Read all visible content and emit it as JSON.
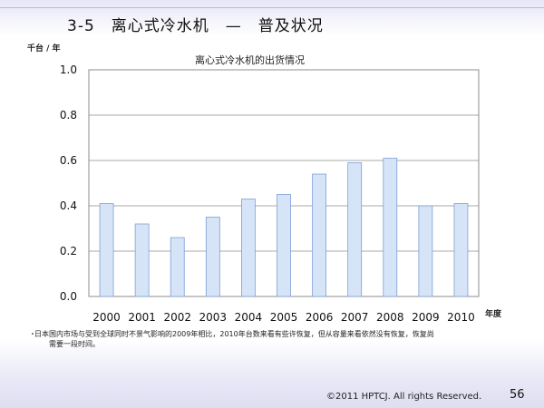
{
  "slide": {
    "title": "3-5　离心式冷水机　—　普及状况",
    "footnote_bullet": "・",
    "footnote_line1": "日本国内市场与受到全球同时不景气影响的2009年相比，2010年台数来看有些许恢复，但从容量来看依然没有恢复，恢复尚",
    "footnote_line2": "需要一段时间。",
    "copyright": "©2011 HPTCJ. All rights Reserved.",
    "page_number": "56"
  },
  "colors": {
    "bar_fill": "#d6e4f7",
    "bar_stroke": "#7f9fd6",
    "grid": "#8c8c8c",
    "accent": "#b9b9e0"
  },
  "chart_data": {
    "type": "bar",
    "title": "离心式冷水机的出货情况",
    "ylabel": "千台 / 年",
    "xlabel": "年度",
    "categories": [
      "2000",
      "2001",
      "2002",
      "2003",
      "2004",
      "2005",
      "2006",
      "2007",
      "2008",
      "2009",
      "2010"
    ],
    "values": [
      0.41,
      0.32,
      0.26,
      0.35,
      0.43,
      0.45,
      0.54,
      0.59,
      0.61,
      0.4,
      0.41
    ],
    "ylim": [
      0,
      1.0
    ],
    "yticks": [
      "0.0",
      "0.2",
      "0.4",
      "0.6",
      "0.8",
      "1.0"
    ],
    "grid": true,
    "legend": "none"
  }
}
